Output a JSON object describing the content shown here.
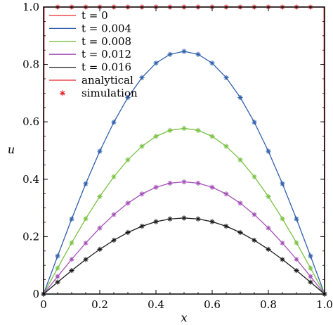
{
  "chart_data": {
    "type": "line",
    "title": "",
    "xlabel": "x",
    "ylabel": "u",
    "xlim": [
      0,
      1
    ],
    "ylim": [
      0,
      1
    ],
    "x_ticks": [
      "0",
      "0.2",
      "0.4",
      "0.6",
      "0.8",
      "1.0"
    ],
    "y_ticks": [
      "0",
      "0.2",
      "0.4",
      "0.6",
      "0.8",
      "1.0"
    ],
    "grid": false,
    "legend_position": "top-left",
    "x": [
      0.0,
      0.05,
      0.1,
      0.15,
      0.2,
      0.25,
      0.3,
      0.35,
      0.4,
      0.45,
      0.5,
      0.55,
      0.6,
      0.65,
      0.7,
      0.75,
      0.8,
      0.85,
      0.9,
      0.95,
      1.0
    ],
    "series": [
      {
        "name": "t = 0",
        "color": "#e8262e",
        "values": [
          1.0,
          1.0,
          1.0,
          1.0,
          1.0,
          1.0,
          1.0,
          1.0,
          1.0,
          1.0,
          1.0,
          1.0,
          1.0,
          1.0,
          1.0,
          1.0,
          1.0,
          1.0,
          1.0,
          1.0,
          1.0
        ]
      },
      {
        "name": "t = 0.004",
        "color": "#2f5faa",
        "values": [
          0.0,
          0.1324,
          0.2616,
          0.3843,
          0.4975,
          0.5986,
          0.6848,
          0.754,
          0.8046,
          0.8352,
          0.8455,
          0.8352,
          0.8046,
          0.754,
          0.6848,
          0.5986,
          0.4975,
          0.3843,
          0.2616,
          0.1324,
          0.0
        ]
      },
      {
        "name": "t = 0.008",
        "color": "#7ac143",
        "values": [
          0.0,
          0.0904,
          0.1786,
          0.2624,
          0.3397,
          0.4087,
          0.4676,
          0.5148,
          0.5494,
          0.5703,
          0.5773,
          0.5703,
          0.5494,
          0.5148,
          0.4676,
          0.4087,
          0.3397,
          0.2624,
          0.1786,
          0.0904,
          0.0
        ]
      },
      {
        "name": "t = 0.012",
        "color": "#a24fb5",
        "values": [
          0.0,
          0.0612,
          0.121,
          0.1777,
          0.2301,
          0.2768,
          0.3167,
          0.3487,
          0.3721,
          0.3863,
          0.391,
          0.3863,
          0.3721,
          0.3487,
          0.3167,
          0.2768,
          0.2301,
          0.1777,
          0.121,
          0.0612,
          0.0
        ]
      },
      {
        "name": "t = 0.016",
        "color": "#1a1a1a",
        "values": [
          0.0,
          0.0415,
          0.0819,
          0.1204,
          0.1559,
          0.1875,
          0.2145,
          0.2362,
          0.2521,
          0.2617,
          0.2649,
          0.2617,
          0.2521,
          0.2362,
          0.2145,
          0.1875,
          0.1559,
          0.1204,
          0.0819,
          0.0415,
          0.0
        ]
      }
    ],
    "legend": [
      {
        "label": "t = 0",
        "style": "line",
        "color": "#e8262e"
      },
      {
        "label": "t = 0.004",
        "style": "line",
        "color": "#2f5faa"
      },
      {
        "label": "t = 0.008",
        "style": "line",
        "color": "#7ac143"
      },
      {
        "label": "t = 0.012",
        "style": "line",
        "color": "#a24fb5"
      },
      {
        "label": "t = 0.016",
        "style": "line",
        "color": "#1a1a1a"
      },
      {
        "label": "analytical",
        "style": "line",
        "color": "#e8262e"
      },
      {
        "label": "simulation",
        "style": "marker",
        "color": "#e8262e"
      }
    ]
  }
}
